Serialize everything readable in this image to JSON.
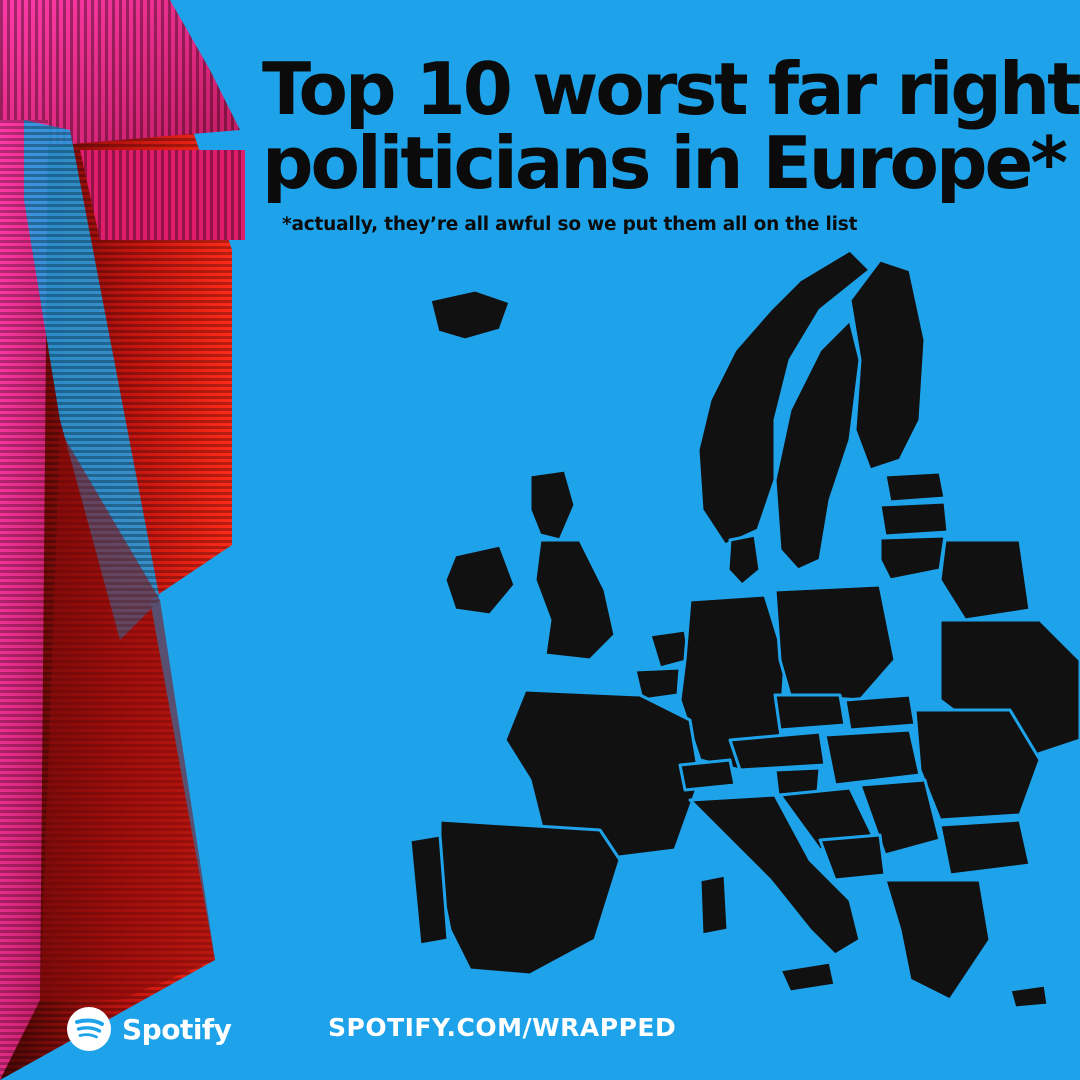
{
  "headline": {
    "line1": "Top 10 worst far right",
    "line2": "politicians in Europe*"
  },
  "footnote": "*actually, they’re all awful so we put them all on the list",
  "brand": {
    "name": "Spotify",
    "logo_icon": "spotify-logo-icon"
  },
  "url": "SPOTIFY.COM/WRAPPED",
  "colors": {
    "background": "#1ea3ea",
    "text_dark": "#0b0b0b",
    "text_light": "#ffffff",
    "map_fill": "#111111",
    "border": "#1ea3ea",
    "art_red": "#e8221c",
    "art_pink": "#ff2e9f",
    "art_dark": "#2a0505"
  }
}
